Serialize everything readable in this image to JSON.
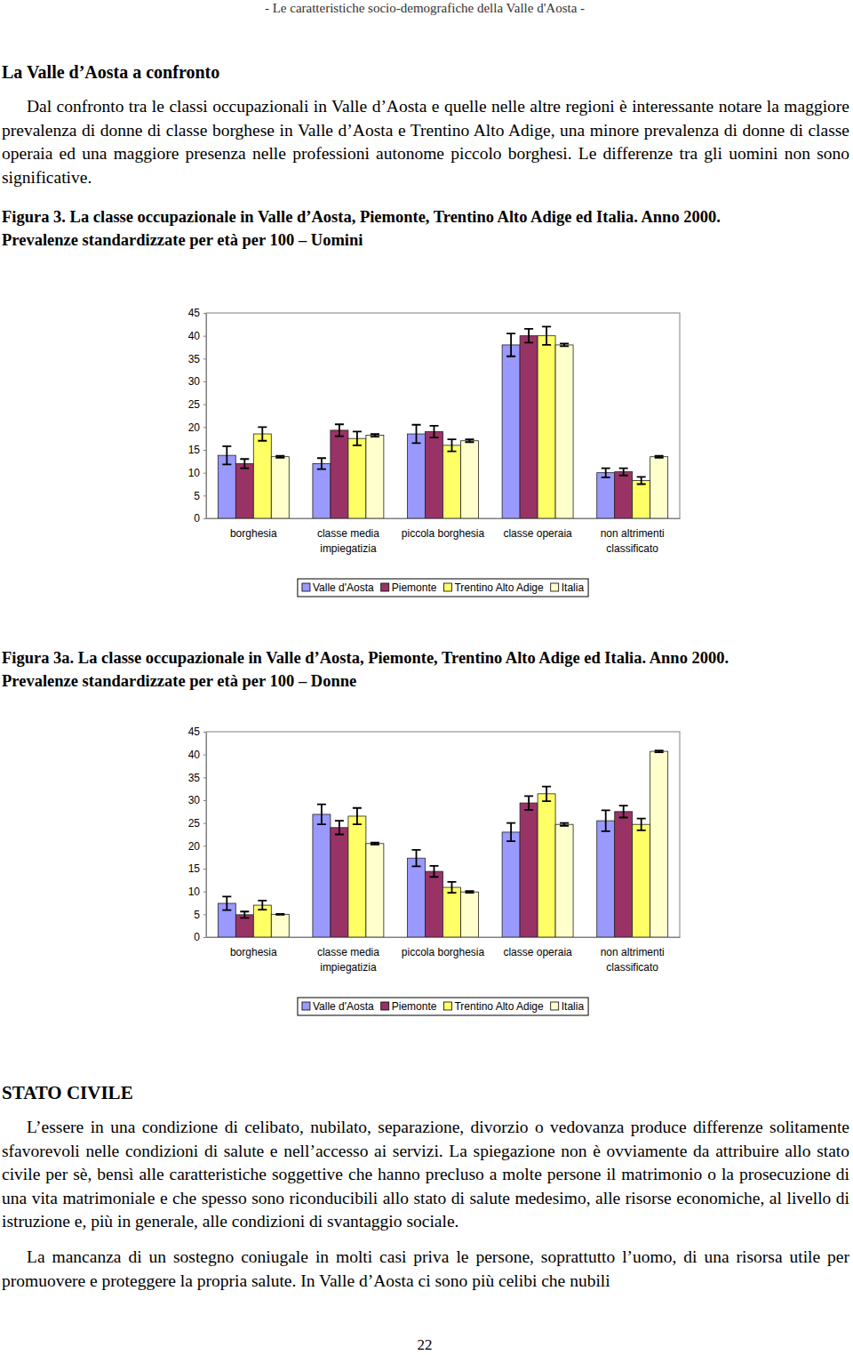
{
  "header": "- Le caratteristiche socio-demografiche della Valle d'Aosta -",
  "section_title": "La Valle d’Aosta a confronto",
  "intro": "Dal confronto tra le classi occupazionali in Valle d’Aosta e quelle nelle altre regioni è interessante notare la maggiore prevalenza di donne di classe borghese in Valle d’Aosta e Trentino Alto Adige, una minore prevalenza di donne di classe operaia ed una maggiore presenza nelle professioni autonome piccolo borghesi. Le differenze tra gli uomini non sono significative.",
  "chart_data": [
    {
      "type": "bar",
      "title": "Figura 3. La classe occupazionale in Valle d’Aosta, Piemonte, Trentino Alto Adige ed Italia. Anno 2000.",
      "subtitle": "Prevalenze standardizzate per età per 100 – Uomini",
      "categories": [
        "borghesia",
        "classe media\nimpiegatizia",
        "piccola borghesia",
        "classe operaia",
        "non altrimenti\nclassificato"
      ],
      "series": [
        {
          "name": "Valle d'Aosta",
          "color": "#9999ff",
          "values": [
            13.8,
            12.0,
            18.5,
            38.0,
            10.0
          ],
          "errors": [
            2.0,
            1.2,
            2.0,
            2.5,
            1.0
          ]
        },
        {
          "name": "Piemonte",
          "color": "#993366",
          "values": [
            12.0,
            19.3,
            19.0,
            40.0,
            10.2
          ],
          "errors": [
            1.0,
            1.3,
            1.3,
            1.5,
            0.8
          ]
        },
        {
          "name": "Trentino Alto Adige",
          "color": "#ffff66",
          "values": [
            18.5,
            17.5,
            16.0,
            40.0,
            8.3
          ],
          "errors": [
            1.5,
            1.5,
            1.3,
            2.0,
            0.8
          ]
        },
        {
          "name": "Italia",
          "color": "#ffffcc",
          "values": [
            13.5,
            18.2,
            17.0,
            38.0,
            13.5
          ],
          "errors": [
            0.2,
            0.3,
            0.3,
            0.3,
            0.2
          ]
        }
      ],
      "ylim": [
        0,
        45
      ],
      "yticks": [
        0,
        5,
        10,
        15,
        20,
        25,
        30,
        35,
        40,
        45
      ],
      "grid": false,
      "legend": "bottom"
    },
    {
      "type": "bar",
      "title": "Figura 3a. La classe occupazionale in Valle d’Aosta, Piemonte, Trentino Alto Adige ed Italia. Anno 2000.",
      "subtitle": "Prevalenze standardizzate per età per 100 – Donne",
      "categories": [
        "borghesia",
        "classe media\nimpiegatizia",
        "piccola borghesia",
        "classe operaia",
        "non altrimenti\nclassificato"
      ],
      "series": [
        {
          "name": "Valle d'Aosta",
          "color": "#9999ff",
          "values": [
            7.4,
            26.9,
            17.3,
            23.0,
            25.5
          ],
          "errors": [
            1.5,
            2.2,
            1.8,
            2.0,
            2.3
          ]
        },
        {
          "name": "Piemonte",
          "color": "#993366",
          "values": [
            4.9,
            24.0,
            14.4,
            29.4,
            27.5
          ],
          "errors": [
            0.7,
            1.5,
            1.2,
            1.5,
            1.3
          ]
        },
        {
          "name": "Trentino Alto Adige",
          "color": "#ffff66",
          "values": [
            7.0,
            26.5,
            10.9,
            31.4,
            24.7
          ],
          "errors": [
            1.0,
            1.8,
            1.2,
            1.6,
            1.3
          ]
        },
        {
          "name": "Italia",
          "color": "#ffffcc",
          "values": [
            5.0,
            20.5,
            9.9,
            24.7,
            40.7
          ],
          "errors": [
            0.1,
            0.2,
            0.2,
            0.3,
            0.2
          ]
        }
      ],
      "ylim": [
        0,
        45
      ],
      "yticks": [
        0,
        5,
        10,
        15,
        20,
        25,
        30,
        35,
        40,
        45
      ],
      "grid": false,
      "legend": "bottom"
    }
  ],
  "section2_title": "STATO CIVILE",
  "section2_paragraphs": [
    "L’essere in una condizione di celibato, nubilato, separazione, divorzio o vedovanza produce differenze solitamente sfavorevoli nelle condizioni di salute e nell’accesso ai servizi. La spiegazione non è ovviamente da attribuire allo stato civile per sè, bensì alle caratteristiche soggettive che hanno precluso a molte persone il matrimonio o la prosecuzione di una vita matrimoniale e che spesso sono riconducibili allo stato di salute medesimo, alle risorse economiche, al livello di istruzione e, più in generale, alle condizioni di svantaggio sociale.",
    "La mancanza di un sostegno coniugale in molti casi priva le persone, soprattutto l’uomo, di una risorsa utile per promuovere e proteggere la propria salute. In Valle d’Aosta ci sono più celibi che nubili"
  ],
  "page_number": "22"
}
